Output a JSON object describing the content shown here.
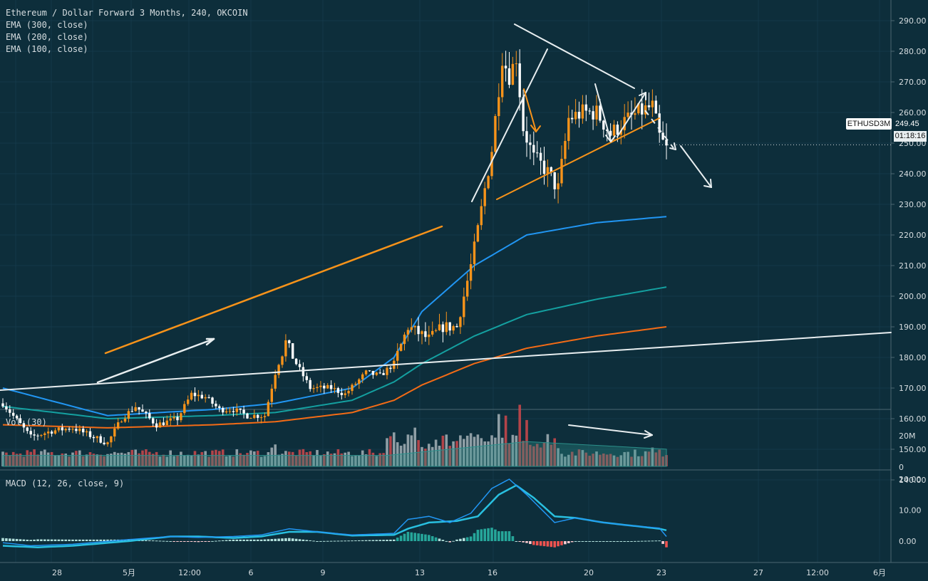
{
  "header": {
    "symbol_title": "Ethereum / Dollar Forward 3 Months, 240, OKCOIN",
    "indicators": [
      "EMA (300, close)",
      "EMA (200, close)",
      "EMA (100, close)"
    ]
  },
  "volume_pane": {
    "label": "Vol (30)",
    "ticks": [
      "20M",
      "0"
    ]
  },
  "macd_pane": {
    "label": "MACD (12, 26, close, 9)",
    "ticks": [
      "20.00",
      "10.00",
      "0.00"
    ]
  },
  "price_axis": {
    "ticks": [
      "290.00",
      "280.00",
      "270.00",
      "260.00",
      "250.00",
      "240.00",
      "230.00",
      "220.00",
      "210.00",
      "200.00",
      "190.00",
      "180.00",
      "170.00",
      "160.00",
      "150.00",
      "140.00"
    ],
    "symbol_badge": "ETHUSD3M",
    "last_price": "249.45",
    "countdown": "01:18:16"
  },
  "time_axis": {
    "labels": [
      "28",
      "5月",
      "12:00",
      "6",
      "9",
      "13",
      "16",
      "20",
      "23",
      "27",
      "12:00",
      "6月"
    ]
  },
  "colors": {
    "background": "#0d2e3b",
    "up_candle": "#f7931a",
    "down_candle": "#ffffff",
    "ema100": "#2196f3",
    "ema200": "#14a0a0",
    "ema300": "#f36b16",
    "vol_up": "#a6b2b8",
    "vol_down": "#d0484c",
    "vol_ma": "#2c8f8a",
    "macd": "#2196f3",
    "signal": "#29c0e0"
  },
  "chart_data": {
    "type": "candlestick",
    "title": "Ethereum / Dollar Forward 3 Months, 240, OKCOIN",
    "ylim": [
      140,
      295
    ],
    "candle_keypoints": [
      [
        0,
        165
      ],
      [
        8,
        154
      ],
      [
        14,
        156
      ],
      [
        20,
        157
      ],
      [
        26,
        154
      ],
      [
        30,
        152
      ],
      [
        34,
        160
      ],
      [
        38,
        164
      ],
      [
        44,
        158
      ],
      [
        50,
        160
      ],
      [
        54,
        168
      ],
      [
        58,
        167
      ],
      [
        62,
        163
      ],
      [
        66,
        163
      ],
      [
        70,
        161
      ],
      [
        75,
        161
      ],
      [
        78,
        175
      ],
      [
        81,
        185
      ],
      [
        84,
        178
      ],
      [
        88,
        170
      ],
      [
        94,
        170
      ],
      [
        98,
        168
      ],
      [
        104,
        175
      ],
      [
        108,
        174
      ],
      [
        112,
        178
      ],
      [
        116,
        190
      ],
      [
        122,
        186
      ],
      [
        126,
        190
      ],
      [
        130,
        190
      ],
      [
        134,
        210
      ],
      [
        136,
        222
      ],
      [
        140,
        248
      ],
      [
        143,
        278
      ],
      [
        145,
        272
      ],
      [
        147,
        278
      ],
      [
        149,
        255
      ],
      [
        152,
        245
      ],
      [
        155,
        242
      ],
      [
        159,
        235
      ],
      [
        162,
        258
      ],
      [
        166,
        260
      ],
      [
        170,
        260
      ],
      [
        174,
        253
      ],
      [
        178,
        257
      ],
      [
        182,
        260
      ],
      [
        186,
        262
      ],
      [
        188,
        252
      ],
      [
        190,
        248
      ]
    ],
    "ema100": [
      [
        0,
        170
      ],
      [
        30,
        161
      ],
      [
        60,
        163
      ],
      [
        78,
        165
      ],
      [
        100,
        170
      ],
      [
        112,
        180
      ],
      [
        120,
        195
      ],
      [
        135,
        210
      ],
      [
        150,
        220
      ],
      [
        170,
        224
      ],
      [
        190,
        226
      ]
    ],
    "ema200": [
      [
        0,
        164
      ],
      [
        30,
        160
      ],
      [
        60,
        161
      ],
      [
        78,
        162
      ],
      [
        100,
        166
      ],
      [
        112,
        172
      ],
      [
        120,
        178
      ],
      [
        135,
        187
      ],
      [
        150,
        194
      ],
      [
        170,
        199
      ],
      [
        190,
        203
      ]
    ],
    "ema300": [
      [
        0,
        158
      ],
      [
        30,
        157
      ],
      [
        60,
        158
      ],
      [
        78,
        159
      ],
      [
        100,
        162
      ],
      [
        112,
        166
      ],
      [
        120,
        171
      ],
      [
        135,
        178
      ],
      [
        150,
        183
      ],
      [
        170,
        187
      ],
      [
        190,
        190
      ]
    ],
    "macd": [
      [
        0,
        -0.5
      ],
      [
        8,
        -1.5
      ],
      [
        20,
        -1
      ],
      [
        36,
        0.5
      ],
      [
        48,
        1.5
      ],
      [
        56,
        1.2
      ],
      [
        66,
        1.5
      ],
      [
        74,
        2
      ],
      [
        82,
        4
      ],
      [
        90,
        3
      ],
      [
        100,
        2
      ],
      [
        112,
        2.5
      ],
      [
        116,
        7
      ],
      [
        122,
        8
      ],
      [
        128,
        6
      ],
      [
        134,
        9
      ],
      [
        140,
        17
      ],
      [
        145,
        20
      ],
      [
        150,
        15
      ],
      [
        158,
        6
      ],
      [
        164,
        7.5
      ],
      [
        172,
        6
      ],
      [
        180,
        5
      ],
      [
        188,
        4.2
      ],
      [
        190,
        1.5
      ]
    ],
    "signal": [
      [
        0,
        -1.5
      ],
      [
        10,
        -2
      ],
      [
        20,
        -1.5
      ],
      [
        36,
        0
      ],
      [
        48,
        1.5
      ],
      [
        56,
        1.5
      ],
      [
        66,
        1
      ],
      [
        74,
        1.5
      ],
      [
        82,
        3
      ],
      [
        90,
        3
      ],
      [
        100,
        1.8
      ],
      [
        112,
        2
      ],
      [
        116,
        4
      ],
      [
        122,
        6
      ],
      [
        130,
        6.5
      ],
      [
        136,
        8
      ],
      [
        142,
        15
      ],
      [
        147,
        18
      ],
      [
        152,
        14
      ],
      [
        158,
        8
      ],
      [
        164,
        7.5
      ],
      [
        172,
        6
      ],
      [
        180,
        5
      ],
      [
        188,
        4
      ],
      [
        190,
        3.5
      ]
    ],
    "volume_base": 6,
    "volume_spikes": [
      [
        4,
        8
      ],
      [
        54,
        7
      ],
      [
        77,
        12
      ],
      [
        78,
        14
      ],
      [
        110,
        18
      ],
      [
        112,
        16
      ],
      [
        118,
        14
      ],
      [
        142,
        27
      ],
      [
        144,
        24
      ],
      [
        148,
        28
      ],
      [
        150,
        20
      ],
      [
        186,
        12
      ]
    ]
  }
}
